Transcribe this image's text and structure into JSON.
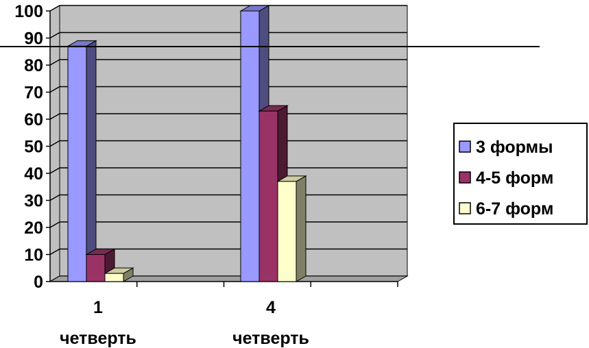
{
  "chart_data": {
    "type": "bar",
    "style": "3d-clustered-column",
    "categories": [
      [
        "1",
        "четверть"
      ],
      [
        "4",
        "четверть"
      ]
    ],
    "series": [
      {
        "name": "3  формы",
        "values": [
          87,
          100
        ],
        "color": "#9999FF",
        "side_color": "#4D4D80",
        "top_color": "#7777CC"
      },
      {
        "name": "4-5 форм",
        "values": [
          10,
          63
        ],
        "color": "#993366",
        "side_color": "#4D1A33",
        "top_color": "#7A2952"
      },
      {
        "name": "6-7 форм",
        "values": [
          3,
          37
        ],
        "color": "#FFFFCC",
        "side_color": "#808066",
        "top_color": "#CCCCA3"
      }
    ],
    "ylim": [
      0,
      100
    ],
    "yticks": [
      0,
      10,
      20,
      30,
      40,
      50,
      60,
      70,
      80,
      90,
      100
    ],
    "grid": true,
    "wall_color": "#C0C0C0",
    "legend_position": "right"
  }
}
